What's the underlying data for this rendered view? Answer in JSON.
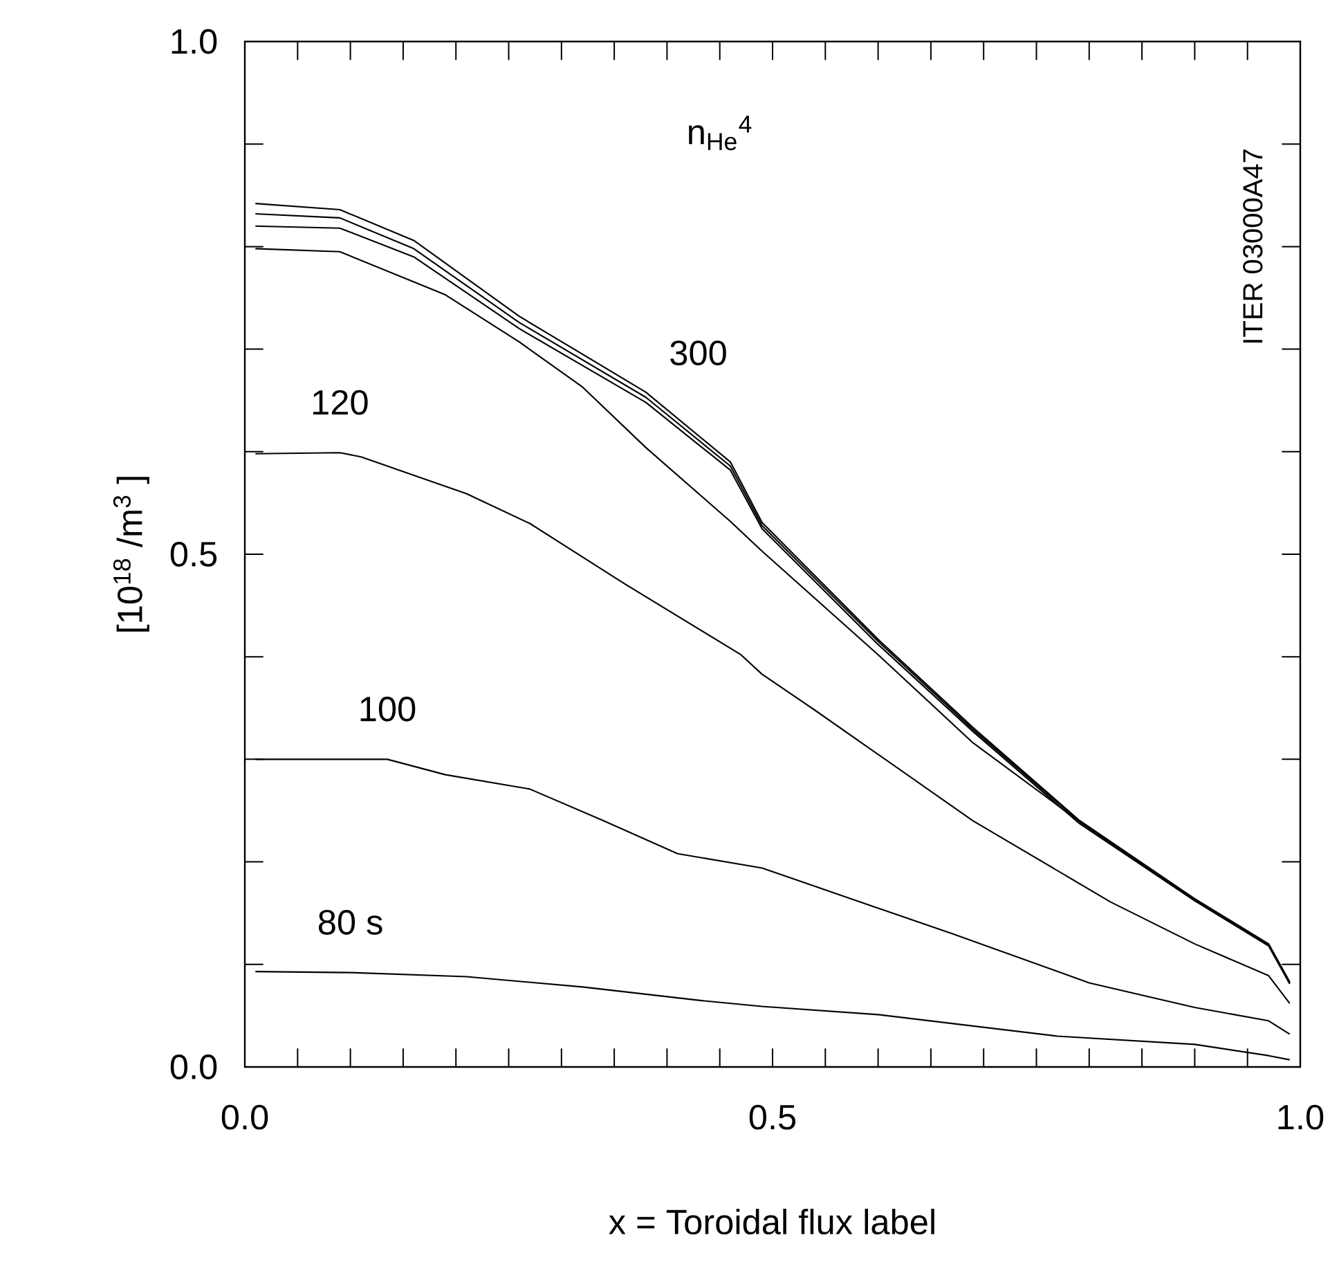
{
  "chart_data": {
    "type": "line",
    "title": "n$_{He}$$^{4}$",
    "xlabel": "x = Toroidal flux label",
    "ylabel": "[10$^{18}$ /m$^{3}$ ]",
    "xlim": [
      0,
      1
    ],
    "ylim": [
      0,
      1
    ],
    "xticks": [
      {
        "value": 0,
        "label": "0.0"
      },
      {
        "value": 0.05,
        "label": null
      },
      {
        "value": 0.1,
        "label": null
      },
      {
        "value": 0.15,
        "label": null
      },
      {
        "value": 0.2,
        "label": null
      },
      {
        "value": 0.25,
        "label": null
      },
      {
        "value": 0.3,
        "label": null
      },
      {
        "value": 0.35,
        "label": null
      },
      {
        "value": 0.4,
        "label": null
      },
      {
        "value": 0.45,
        "label": null
      },
      0.5,
      {
        "value": 0.55,
        "label": null
      },
      {
        "value": 0.6,
        "label": null
      },
      {
        "value": 0.65,
        "label": null
      },
      {
        "value": 0.7,
        "label": null
      },
      {
        "value": 0.75,
        "label": null
      },
      {
        "value": 0.8,
        "label": null
      },
      {
        "value": 0.85,
        "label": null
      },
      {
        "value": 0.9,
        "label": null
      },
      {
        "value": 0.95,
        "label": null
      },
      {
        "value": 1,
        "label": "1.0"
      }
    ],
    "yticks": [
      {
        "value": 0,
        "label": "0.0"
      },
      {
        "value": 0.1,
        "label": null
      },
      {
        "value": 0.2,
        "label": null
      },
      {
        "value": 0.3,
        "label": null
      },
      {
        "value": 0.4,
        "label": null
      },
      0.5,
      {
        "value": 0.6,
        "label": null
      },
      {
        "value": 0.7,
        "label": null
      },
      {
        "value": 0.8,
        "label": null
      },
      {
        "value": 0.9,
        "label": null
      },
      {
        "value": 1,
        "label": "1.0"
      }
    ],
    "grid": false,
    "marker": "none",
    "line_style": "solid",
    "series": [
      {
        "name": "80 s",
        "color": "#000000",
        "x": [
          0.01,
          0.1,
          0.21,
          0.32,
          0.43,
          0.49,
          0.6,
          0.77,
          0.9,
          0.97,
          0.99
        ],
        "values": [
          0.093,
          0.092,
          0.088,
          0.078,
          0.065,
          0.059,
          0.051,
          0.03,
          0.022,
          0.011,
          0.007
        ]
      },
      {
        "name": "100",
        "color": "#000000",
        "x": [
          0.01,
          0.135,
          0.19,
          0.27,
          0.34,
          0.41,
          0.49,
          0.67,
          0.8,
          0.9,
          0.97,
          0.99
        ],
        "values": [
          0.3,
          0.3,
          0.285,
          0.271,
          0.24,
          0.208,
          0.194,
          0.13,
          0.082,
          0.058,
          0.045,
          0.032
        ]
      },
      {
        "name": "120",
        "color": "#000000",
        "x": [
          0.01,
          0.09,
          0.11,
          0.21,
          0.27,
          0.36,
          0.47,
          0.49,
          0.54,
          0.69,
          0.82,
          0.9,
          0.97,
          0.99
        ],
        "values": [
          0.598,
          0.599,
          0.595,
          0.559,
          0.53,
          0.471,
          0.402,
          0.383,
          0.348,
          0.24,
          0.161,
          0.12,
          0.089,
          0.062
        ]
      },
      {
        "color": "#000000",
        "x": [
          0.01,
          0.09,
          0.19,
          0.26,
          0.32,
          0.38,
          0.46,
          0.49,
          0.6,
          0.69,
          0.79,
          0.9,
          0.97,
          0.99
        ],
        "values": [
          0.798,
          0.795,
          0.753,
          0.707,
          0.663,
          0.604,
          0.532,
          0.503,
          0.402,
          0.316,
          0.24,
          0.163,
          0.119,
          0.082
        ]
      },
      {
        "name": "300",
        "color": "#000000",
        "x": [
          0.01,
          0.09,
          0.16,
          0.26,
          0.38,
          0.46,
          0.49,
          0.6,
          0.69,
          0.79,
          0.9,
          0.97,
          0.99
        ],
        "values": [
          0.842,
          0.836,
          0.806,
          0.732,
          0.658,
          0.59,
          0.531,
          0.417,
          0.331,
          0.241,
          0.164,
          0.12,
          0.083
        ]
      },
      {
        "color": "#000000",
        "x": [
          0.01,
          0.09,
          0.16,
          0.26,
          0.38,
          0.46,
          0.49,
          0.6,
          0.69,
          0.79,
          0.9,
          0.97,
          0.99
        ],
        "values": [
          0.832,
          0.828,
          0.798,
          0.726,
          0.653,
          0.586,
          0.528,
          0.415,
          0.329,
          0.24,
          0.163,
          0.119,
          0.082
        ]
      },
      {
        "color": "#000000",
        "x": [
          0.01,
          0.09,
          0.16,
          0.26,
          0.38,
          0.46,
          0.49,
          0.6,
          0.69,
          0.79,
          0.9,
          0.97,
          0.99
        ],
        "values": [
          0.82,
          0.818,
          0.79,
          0.72,
          0.648,
          0.582,
          0.525,
          0.412,
          0.327,
          0.238,
          0.162,
          0.118,
          0.081
        ]
      }
    ],
    "annotations": [
      "ITER 03000A47"
    ]
  }
}
